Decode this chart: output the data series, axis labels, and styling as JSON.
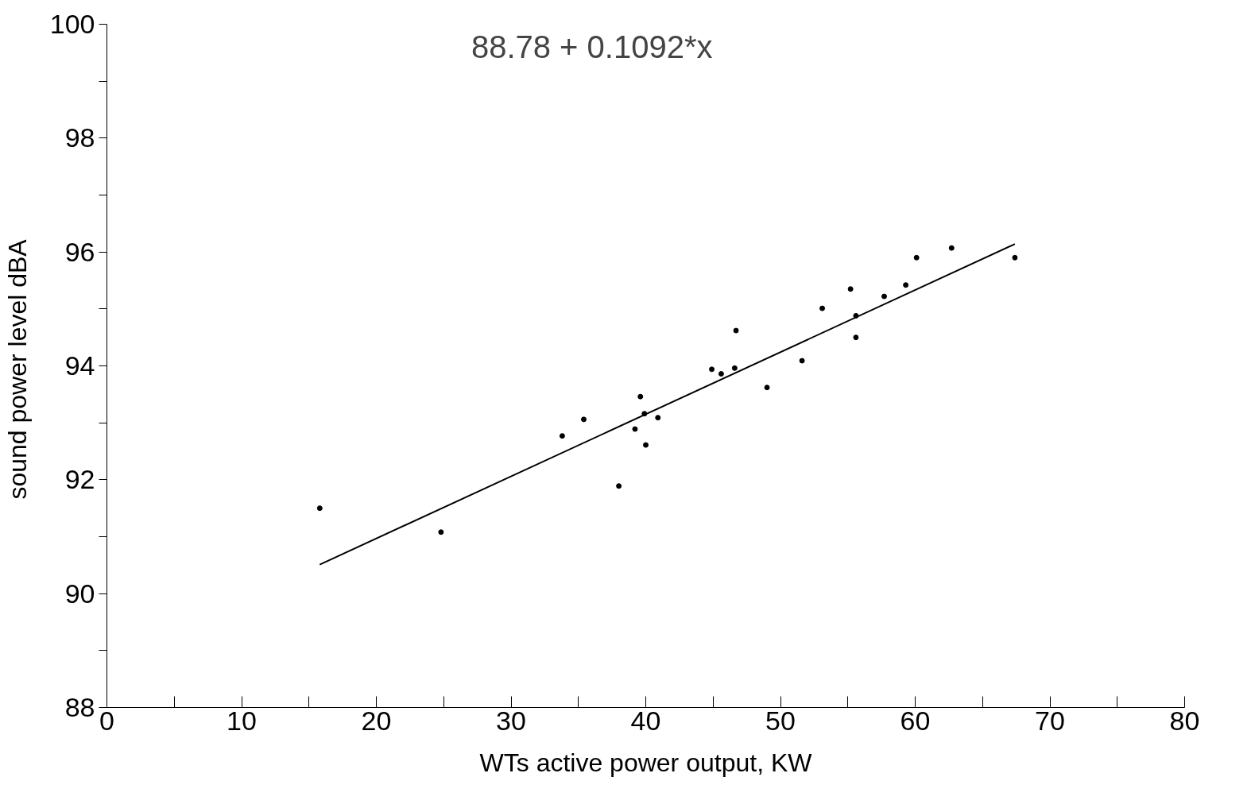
{
  "chart_data": {
    "type": "scatter",
    "xlabel": "WTs active power output, KW",
    "ylabel": "sound power level  dBA",
    "annotations": [
      "88.78 + 0.1092*x"
    ],
    "xlim": [
      0,
      80
    ],
    "ylim": [
      88,
      100
    ],
    "xticks": [
      0,
      {
        "value": 5,
        "label": null
      },
      10,
      {
        "value": 15,
        "label": null
      },
      20,
      {
        "value": 25,
        "label": null
      },
      30,
      {
        "value": 35,
        "label": null
      },
      40,
      {
        "value": 45,
        "label": null
      },
      50,
      {
        "value": 55,
        "label": null
      },
      60,
      {
        "value": 65,
        "label": null
      },
      70,
      {
        "value": 75,
        "label": null
      },
      80
    ],
    "yticks": [
      88,
      {
        "value": 89,
        "label": null
      },
      90,
      {
        "value": 91,
        "label": null
      },
      92,
      {
        "value": 93,
        "label": null
      },
      94,
      {
        "value": 95,
        "label": null
      },
      96,
      {
        "value": 97,
        "label": null
      },
      98,
      {
        "value": 99,
        "label": null
      },
      100
    ],
    "grid": false,
    "series": [
      {
        "color": "#000000",
        "marker": "circle",
        "x": [
          15.8,
          24.8,
          33.8,
          35.4,
          38.0,
          39.2,
          39.6,
          39.9,
          40.0,
          40.9,
          44.9,
          45.6,
          46.6,
          46.7,
          49.0,
          51.6,
          53.1,
          55.2,
          55.6,
          55.6,
          57.7,
          59.3,
          60.1,
          62.7,
          67.4
        ],
        "values": [
          91.5,
          91.08,
          92.77,
          93.06,
          91.89,
          92.89,
          93.46,
          93.16,
          92.61,
          93.09,
          93.94,
          93.86,
          93.96,
          94.62,
          93.62,
          94.09,
          95.01,
          95.35,
          94.88,
          94.5,
          95.22,
          95.42,
          95.9,
          96.07,
          95.9
        ]
      },
      {
        "type": "line",
        "color": "#000000",
        "line_style": "solid",
        "marker": "none",
        "x": [
          15.8,
          67.4
        ],
        "values": [
          90.51,
          96.14
        ]
      }
    ]
  }
}
